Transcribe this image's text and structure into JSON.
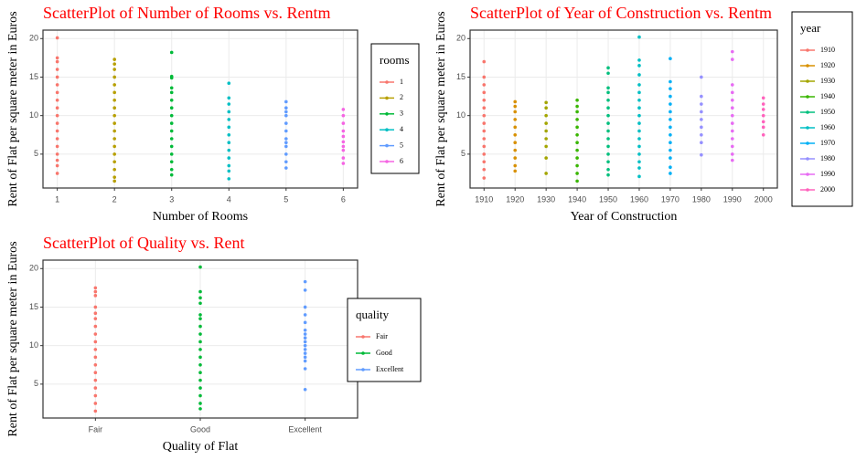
{
  "chart_data": [
    {
      "type": "scatter",
      "title": "ScatterPlot of Number of Rooms vs. Rentm",
      "x_label": "Number of Rooms",
      "y_label": "Rent of Flat per square meter in Euros",
      "legend_title": "rooms",
      "xlim": [
        0.75,
        6.25
      ],
      "xticks": [
        1,
        2,
        3,
        4,
        5,
        6
      ],
      "ylim": [
        0.6,
        21.1
      ],
      "yticks": [
        5,
        10,
        15,
        20
      ],
      "grid": true,
      "series": [
        {
          "name": "1",
          "color": "#F8766D",
          "x": [
            1,
            1,
            1,
            1,
            1,
            1,
            1,
            1,
            1,
            1,
            1,
            1,
            1,
            1,
            1,
            1,
            1,
            1
          ],
          "values": [
            2.5,
            3.5,
            4.2,
            5,
            6,
            7,
            8,
            9,
            10,
            11,
            12,
            13,
            14,
            15,
            16,
            17,
            17.5,
            20.1
          ]
        },
        {
          "name": "2",
          "color": "#B79F00",
          "x": [
            2,
            2,
            2,
            2,
            2,
            2,
            2,
            2,
            2,
            2,
            2,
            2,
            2,
            2,
            2,
            2,
            2,
            2
          ],
          "values": [
            1.5,
            2,
            3,
            4,
            5,
            6,
            7,
            8,
            9,
            10,
            11,
            12,
            13,
            14,
            15,
            16,
            16.7,
            17.3
          ]
        },
        {
          "name": "3",
          "color": "#00BA38",
          "x": [
            3,
            3,
            3,
            3,
            3,
            3,
            3,
            3,
            3,
            3,
            3,
            3,
            3,
            3,
            3,
            3
          ],
          "values": [
            2.3,
            3,
            4,
            5,
            6,
            7,
            8,
            9,
            10,
            11,
            12,
            13,
            13.6,
            14.9,
            15.1,
            18.2
          ]
        },
        {
          "name": "4",
          "color": "#00BFC4",
          "x": [
            4,
            4,
            4,
            4,
            4,
            4,
            4,
            4,
            4,
            4,
            4,
            4,
            4
          ],
          "values": [
            1.8,
            2.8,
            3.5,
            4.5,
            5.5,
            6.5,
            7.5,
            8.5,
            9.5,
            10.5,
            11.5,
            12.3,
            14.2
          ]
        },
        {
          "name": "5",
          "color": "#619CFF",
          "x": [
            5,
            5,
            5,
            5,
            5,
            5,
            5,
            5,
            5,
            5,
            5,
            5
          ],
          "values": [
            3.2,
            4,
            5,
            6,
            6.5,
            7,
            8,
            9,
            10,
            10.5,
            11,
            11.8
          ]
        },
        {
          "name": "6",
          "color": "#F564E3",
          "x": [
            6,
            6,
            6,
            6,
            6,
            6,
            6,
            6,
            6,
            6
          ],
          "values": [
            3.8,
            4.5,
            5.5,
            6,
            6.6,
            7.3,
            8,
            9,
            10,
            10.8
          ]
        }
      ]
    },
    {
      "type": "scatter",
      "title": "ScatterPlot of Year of Construction vs. Rentm",
      "x_label": "Year of Construction",
      "y_label": "Rent of Flat per square meter in Euros",
      "legend_title": "year",
      "xlim": [
        1905.5,
        2004.5
      ],
      "xticks": [
        1910,
        1920,
        1930,
        1940,
        1950,
        1960,
        1970,
        1980,
        1990,
        2000
      ],
      "ylim": [
        0.6,
        21.1
      ],
      "yticks": [
        5,
        10,
        15,
        20
      ],
      "grid": true,
      "series": [
        {
          "name": "1910",
          "color": "#F8766D",
          "x": [
            1910,
            1910,
            1910,
            1910,
            1910,
            1910,
            1910,
            1910,
            1910,
            1910,
            1910,
            1910,
            1910,
            1910,
            1910
          ],
          "values": [
            1.9,
            3,
            4,
            5,
            6,
            7,
            8,
            9,
            10,
            11,
            12,
            13,
            14,
            15,
            17
          ]
        },
        {
          "name": "1920",
          "color": "#D89000",
          "x": [
            1920,
            1920,
            1920,
            1920,
            1920,
            1920,
            1920,
            1920,
            1920,
            1920,
            1920
          ],
          "values": [
            2.8,
            3.5,
            4.5,
            5.5,
            6.5,
            7.5,
            8.5,
            9.5,
            10.5,
            11.2,
            11.8
          ]
        },
        {
          "name": "1930",
          "color": "#A3A500",
          "x": [
            1930,
            1930,
            1930,
            1930,
            1930,
            1930,
            1930,
            1930,
            1930
          ],
          "values": [
            2.5,
            4.5,
            6,
            7,
            8,
            9,
            10,
            11,
            11.7
          ]
        },
        {
          "name": "1940",
          "color": "#39B600",
          "x": [
            1940,
            1940,
            1940,
            1940,
            1940,
            1940,
            1940,
            1940,
            1940,
            1940,
            1940,
            1940
          ],
          "values": [
            1.5,
            2.5,
            3.5,
            4.5,
            5.5,
            6.5,
            7.5,
            8.5,
            9.5,
            10.5,
            11.2,
            12
          ]
        },
        {
          "name": "1950",
          "color": "#00BF7D",
          "x": [
            1950,
            1950,
            1950,
            1950,
            1950,
            1950,
            1950,
            1950,
            1950,
            1950,
            1950,
            1950,
            1950,
            1950,
            1950
          ],
          "values": [
            2.3,
            3,
            4,
            5,
            6,
            7,
            8,
            9,
            10,
            11,
            12,
            13,
            13.6,
            15.5,
            16.2
          ]
        },
        {
          "name": "1960",
          "color": "#00BFC4",
          "x": [
            1960,
            1960,
            1960,
            1960,
            1960,
            1960,
            1960,
            1960,
            1960,
            1960,
            1960,
            1960,
            1960,
            1960,
            1960,
            1960,
            1960
          ],
          "values": [
            2.1,
            3.2,
            4,
            5,
            6,
            7,
            8,
            9,
            10,
            11,
            12,
            13,
            14,
            15.3,
            16.5,
            17.2,
            20.2
          ]
        },
        {
          "name": "1970",
          "color": "#00B0F6",
          "x": [
            1970,
            1970,
            1970,
            1970,
            1970,
            1970,
            1970,
            1970,
            1970,
            1970,
            1970,
            1970,
            1970,
            1970
          ],
          "values": [
            2.5,
            3.3,
            4.5,
            5.5,
            6.5,
            7.5,
            8.5,
            9.5,
            10.5,
            11.5,
            12.5,
            13.5,
            14.4,
            17.4
          ]
        },
        {
          "name": "1980",
          "color": "#9590FF",
          "x": [
            1980,
            1980,
            1980,
            1980,
            1980,
            1980,
            1980,
            1980,
            1980
          ],
          "values": [
            4.9,
            6.5,
            7.5,
            8.5,
            9.5,
            10.5,
            11.5,
            12.5,
            15
          ]
        },
        {
          "name": "1990",
          "color": "#E76BF3",
          "x": [
            1990,
            1990,
            1990,
            1990,
            1990,
            1990,
            1990,
            1990,
            1990,
            1990,
            1990,
            1990,
            1990
          ],
          "values": [
            4.2,
            5,
            6,
            7,
            8,
            9,
            10,
            11,
            12,
            13,
            14,
            17.3,
            18.3
          ]
        },
        {
          "name": "2000",
          "color": "#FF62BC",
          "x": [
            2000,
            2000,
            2000,
            2000,
            2000,
            2000,
            2000
          ],
          "values": [
            7.5,
            8.5,
            9.2,
            10,
            10.8,
            11.5,
            12.3
          ]
        }
      ]
    },
    {
      "type": "scatter",
      "title": "ScatterPlot of Quality vs. Rent",
      "x_label": "Quality of Flat",
      "y_label": "Rent of Flat per square meter in Euros",
      "legend_title": "quality",
      "categories": [
        "Fair",
        "Good",
        "Excellent"
      ],
      "ylim": [
        0.6,
        21.1
      ],
      "yticks": [
        5,
        10,
        15,
        20
      ],
      "grid": true,
      "series": [
        {
          "name": "Fair",
          "color": "#F8766D",
          "values": [
            1.5,
            2.5,
            3.5,
            4.5,
            5.5,
            6.5,
            7.5,
            8.5,
            9.5,
            10.5,
            11.5,
            12.5,
            13.5,
            14.2,
            15,
            16.5,
            17,
            17.5
          ]
        },
        {
          "name": "Good",
          "color": "#00BA38",
          "values": [
            1.8,
            2.5,
            3.5,
            4.5,
            5.5,
            6.5,
            7.5,
            8.5,
            9.5,
            10.5,
            11.5,
            12.5,
            13.5,
            14,
            15.5,
            16.2,
            17,
            20.2
          ]
        },
        {
          "name": "Excellent",
          "color": "#619CFF",
          "values": [
            4.3,
            7,
            8,
            8.5,
            9,
            9.5,
            10,
            10.5,
            11,
            11.5,
            12,
            13,
            14,
            15,
            17.2,
            18.3
          ]
        }
      ]
    }
  ]
}
